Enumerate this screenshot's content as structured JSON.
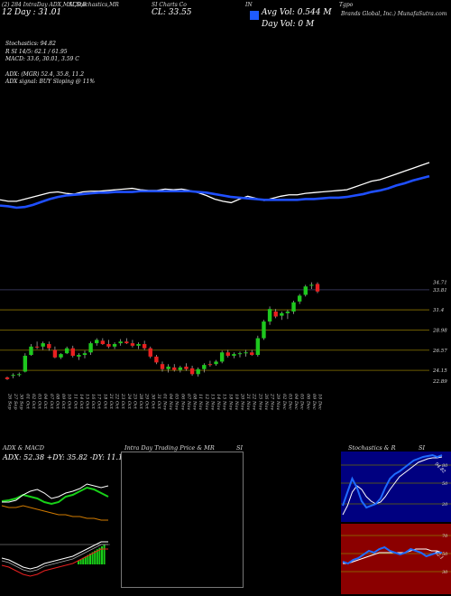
{
  "header": {
    "line1": "(2) 284 IntraDay ADX,MACD,B",
    "line1b": "SI,Stochastics,MR",
    "line1c": "SI Charts Co",
    "line1d": "IN",
    "line1e": "Tgpo",
    "cl_label": "CL: 33.55",
    "day_label": "Day : 31.01",
    "prefix": "12",
    "avg_vol": "Avg Vol: 0.544  M",
    "day_vol": "Day Vol: 0   M",
    "company": "Brands Global, Inc.) MunafaSutra.com",
    "color_block": "#1e5bff"
  },
  "indicators": {
    "stoch": "Stochastics: 94.82",
    "rsi": "R             SI 14/5: 62.1 / 61.95",
    "macd": "MACD: 33.6, 30.01, 3.59 C",
    "adx": "ADX:                         (MGR) 52.4, 35.8, 11.2",
    "adx_signal": "ADX  signal:                         BUY Sloping @ 11%"
  },
  "chart_data": {
    "type": "candlestick",
    "dates": [
      "26 Sep",
      "27 Sep",
      "30 Sep",
      "01 Oct",
      "02 Oct",
      "03 Oct",
      "04 Oct",
      "07 Oct",
      "08 Oct",
      "09 Oct",
      "10 Oct",
      "11 Oct",
      "14 Oct",
      "15 Oct",
      "16 Oct",
      "17 Oct",
      "18 Oct",
      "21 Oct",
      "22 Oct",
      "23 Oct",
      "24 Oct",
      "25 Oct",
      "28 Oct",
      "29 Oct",
      "30 Oct",
      "31 Oct",
      "01 Nov",
      "04 Nov",
      "05 Nov",
      "06 Nov",
      "07 Nov",
      "08 Nov",
      "11 Nov",
      "12 Nov",
      "13 Nov",
      "14 Nov",
      "15 Nov",
      "18 Nov",
      "19 Nov",
      "20 Nov",
      "21 Nov",
      "22 Nov",
      "25 Nov",
      "26 Nov",
      "27 Nov",
      "29 Nov",
      "02 Dec",
      "03 Dec",
      "04 Dec",
      "05 Dec",
      "06 Dec",
      "09 Dec",
      "10 Dec"
    ],
    "y_ticks": [
      34.71,
      33.81,
      31.4,
      28.98,
      26.57,
      24.15,
      22.89
    ],
    "ylim": [
      22.0,
      35.2
    ],
    "hlines": [
      31.4,
      28.98,
      26.57,
      24.15
    ],
    "ohlc": [
      [
        23.3,
        23.4,
        23.0,
        23.1
      ],
      [
        23.5,
        23.8,
        23.2,
        23.6
      ],
      [
        23.6,
        23.9,
        23.4,
        23.7
      ],
      [
        24.0,
        26.2,
        23.9,
        25.9
      ],
      [
        26.0,
        27.3,
        25.9,
        27.0
      ],
      [
        27.0,
        27.6,
        26.7,
        26.9
      ],
      [
        27.0,
        27.6,
        26.6,
        27.4
      ],
      [
        27.3,
        27.6,
        26.5,
        26.8
      ],
      [
        26.6,
        27.0,
        25.6,
        25.7
      ],
      [
        25.7,
        26.2,
        25.5,
        26.1
      ],
      [
        26.2,
        27.0,
        26.1,
        26.8
      ],
      [
        26.8,
        27.1,
        25.7,
        25.9
      ],
      [
        25.8,
        26.2,
        25.4,
        26.0
      ],
      [
        26.0,
        26.5,
        25.6,
        26.2
      ],
      [
        26.3,
        27.6,
        26.0,
        27.4
      ],
      [
        27.4,
        28.0,
        27.1,
        27.8
      ],
      [
        27.7,
        28.0,
        27.2,
        27.3
      ],
      [
        27.3,
        27.8,
        26.8,
        27.0
      ],
      [
        27.0,
        27.5,
        26.7,
        27.3
      ],
      [
        27.4,
        27.9,
        27.1,
        27.6
      ],
      [
        27.6,
        28.0,
        27.3,
        27.4
      ],
      [
        27.4,
        27.8,
        26.9,
        27.1
      ],
      [
        27.1,
        27.5,
        26.7,
        27.3
      ],
      [
        27.3,
        27.7,
        26.6,
        26.8
      ],
      [
        26.8,
        27.0,
        25.6,
        25.8
      ],
      [
        25.8,
        26.0,
        24.9,
        25.1
      ],
      [
        24.9,
        25.2,
        24.0,
        24.3
      ],
      [
        24.3,
        24.9,
        23.9,
        24.6
      ],
      [
        24.5,
        24.9,
        24.0,
        24.2
      ],
      [
        24.2,
        24.7,
        23.9,
        24.5
      ],
      [
        24.6,
        25.0,
        24.1,
        24.3
      ],
      [
        24.4,
        24.7,
        23.5,
        23.7
      ],
      [
        23.7,
        24.5,
        23.4,
        24.3
      ],
      [
        24.3,
        25.0,
        23.9,
        24.8
      ],
      [
        24.9,
        25.3,
        24.6,
        24.8
      ],
      [
        24.9,
        25.4,
        24.7,
        25.2
      ],
      [
        25.2,
        26.5,
        25.0,
        26.3
      ],
      [
        26.3,
        26.6,
        25.7,
        25.9
      ],
      [
        25.9,
        26.3,
        25.6,
        26.1
      ],
      [
        26.1,
        26.4,
        25.7,
        26.2
      ],
      [
        26.2,
        26.6,
        25.8,
        26.3
      ],
      [
        26.3,
        26.6,
        25.9,
        26.0
      ],
      [
        26.0,
        28.3,
        25.8,
        28.0
      ],
      [
        28.0,
        30.2,
        27.8,
        30.0
      ],
      [
        30.0,
        31.8,
        29.6,
        31.5
      ],
      [
        31.2,
        31.5,
        30.4,
        30.6
      ],
      [
        30.7,
        31.2,
        30.2,
        31.0
      ],
      [
        31.0,
        31.4,
        30.3,
        31.2
      ],
      [
        31.2,
        32.5,
        30.9,
        32.3
      ],
      [
        32.4,
        33.3,
        32.1,
        33.1
      ],
      [
        33.2,
        34.4,
        33.0,
        34.2
      ],
      [
        34.3,
        34.7,
        33.9,
        34.4
      ],
      [
        34.5,
        34.7,
        33.4,
        33.6
      ]
    ],
    "sma_price": [
      24.4,
      24.3,
      24.1,
      24.2,
      24.5,
      24.9,
      25.3,
      25.6,
      25.8,
      25.9,
      26.0,
      26.1,
      26.2,
      26.2,
      26.3,
      26.3,
      26.3,
      26.4,
      26.4,
      26.4,
      26.4,
      26.4,
      26.4,
      26.4,
      26.3,
      26.2,
      26.0,
      25.8,
      25.6,
      25.5,
      25.4,
      25.3,
      25.2,
      25.2,
      25.2,
      25.2,
      25.2,
      25.3,
      25.3,
      25.4,
      25.5,
      25.5,
      25.6,
      25.8,
      26.0,
      26.3,
      26.5,
      26.8,
      27.2,
      27.5,
      27.9,
      28.2,
      28.5
    ],
    "close_line": [
      25.2,
      25.0,
      25.0,
      25.3,
      25.6,
      25.9,
      26.2,
      26.3,
      26.1,
      26.0,
      26.3,
      26.4,
      26.4,
      26.5,
      26.6,
      26.7,
      26.8,
      26.6,
      26.5,
      26.5,
      26.7,
      26.6,
      26.7,
      26.5,
      26.2,
      25.8,
      25.3,
      25.0,
      24.8,
      25.3,
      25.7,
      25.4,
      25.1,
      25.4,
      25.7,
      25.9,
      25.9,
      26.1,
      26.2,
      26.3,
      26.4,
      26.5,
      26.6,
      27.0,
      27.4,
      27.8,
      28.0,
      28.4,
      28.8,
      29.2,
      29.6,
      30.0,
      30.4
    ]
  },
  "panels": {
    "adx_title": "ADX  & MACD",
    "adx_values": "ADX: 52.38  +DY: 35.82  -DY: 11.19",
    "intraday_title": "Intra  Day Trading Price  & MR",
    "intraday_title2": "SI",
    "stoch_title": "Stochastics & R",
    "stoch_title2": "SI",
    "stoch_ticks": [
      "80",
      "50",
      "20"
    ],
    "rsi_ticks": [
      "70",
      "50",
      "30"
    ],
    "stoch_value": "94.82",
    "rsi_value": "62.1"
  },
  "colors": {
    "up": "#1ec81e",
    "down": "#e82020",
    "sma": "#1f4fff",
    "price_line": "#ffffff",
    "hline": "#6b5a00"
  }
}
